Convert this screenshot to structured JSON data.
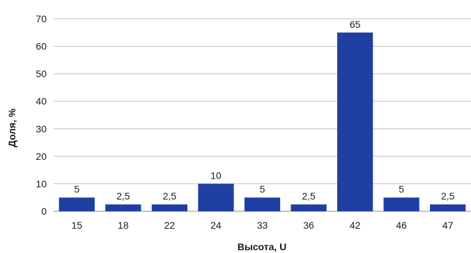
{
  "chart_data": {
    "type": "bar",
    "title": "",
    "xlabel": "Высота, U",
    "ylabel": "Доля, %",
    "categories": [
      "15",
      "18",
      "22",
      "24",
      "33",
      "36",
      "42",
      "46",
      "47"
    ],
    "values": [
      5,
      2.5,
      2.5,
      10,
      5,
      2.5,
      65,
      5,
      2.5
    ],
    "value_labels": [
      "5",
      "2,5",
      "2,5",
      "10",
      "5",
      "2,5",
      "65",
      "5",
      "2,5"
    ],
    "ylim": [
      0,
      70
    ],
    "yticks": [
      "0",
      "10",
      "20",
      "30",
      "40",
      "50",
      "60",
      "70"
    ],
    "grid": true,
    "bar_color": "#1f3fa3",
    "grid_color": "#bdbdbd"
  }
}
